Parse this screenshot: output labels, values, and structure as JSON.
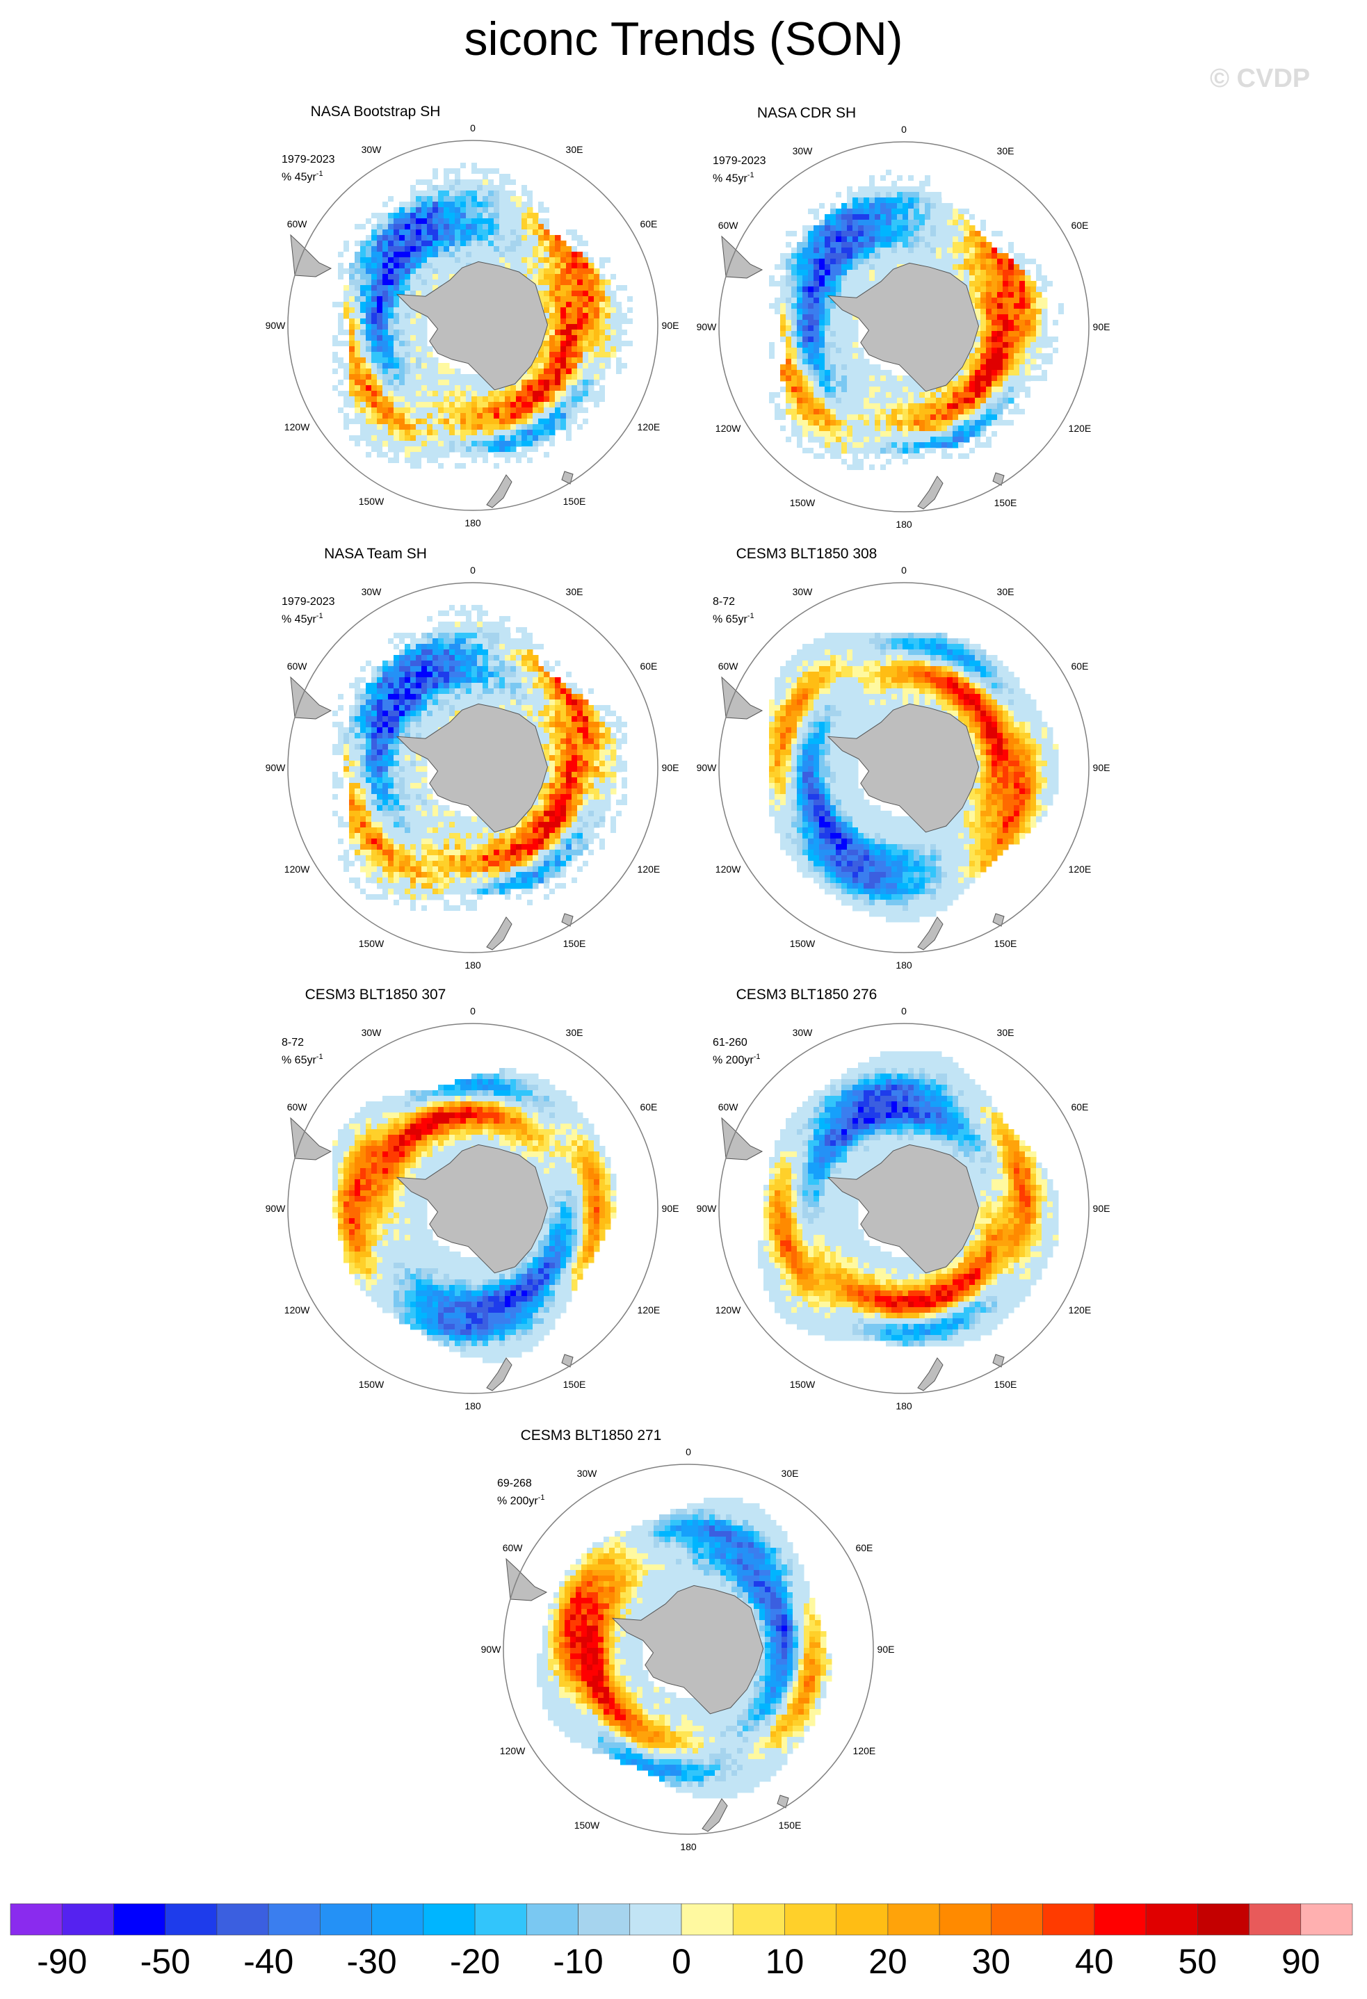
{
  "title": "siconc Trends (SON)",
  "watermark": "© CVDP",
  "lon_labels": [
    "0",
    "30E",
    "60E",
    "90E",
    "120E",
    "150E",
    "180",
    "150W",
    "120W",
    "90W",
    "60W",
    "30W"
  ],
  "panels": [
    {
      "title": "NASA Bootstrap SH",
      "period": "1979-2023",
      "unit_prefix": "% 45yr",
      "unit_sup": "-1",
      "pattern": {
        "a1": 0,
        "a2": 0,
        "ph1": 1.0,
        "ph2": 2.6,
        "edge": 0.74,
        "noise": 0.55
      }
    },
    {
      "title": "NASA CDR SH",
      "period": "1979-2023",
      "unit_prefix": "% 45yr",
      "unit_sup": "-1",
      "pattern": {
        "a1": 0,
        "a2": 0,
        "ph1": 1.1,
        "ph2": 2.5,
        "edge": 0.72,
        "noise": 0.45
      }
    },
    {
      "title": "NASA Team SH",
      "period": "1979-2023",
      "unit_prefix": "% 45yr",
      "unit_sup": "-1",
      "pattern": {
        "a1": 0,
        "a2": 0,
        "ph1": 0.9,
        "ph2": 2.7,
        "edge": 0.74,
        "noise": 0.55
      }
    },
    {
      "title": "CESM3 BLT1850 308",
      "period": "8-72",
      "unit_prefix": "% 65yr",
      "unit_sup": "-1",
      "pattern": {
        "a1": 0,
        "a2": 0,
        "ph1": 2.2,
        "ph2": 0.8,
        "edge": 0.78,
        "noise": 0.3
      }
    },
    {
      "title": "CESM3 BLT1850 307",
      "period": "8-72",
      "unit_prefix": "% 65yr",
      "unit_sup": "-1",
      "pattern": {
        "a1": 0,
        "a2": 0,
        "ph1": 3.6,
        "ph2": 1.5,
        "edge": 0.76,
        "noise": 0.3
      }
    },
    {
      "title": "CESM3 BLT1850 276",
      "period": "61-260",
      "unit_prefix": "% 200yr",
      "unit_sup": "-1",
      "pattern": {
        "a1": 0,
        "a2": 0,
        "ph1": 0.3,
        "ph2": 2.0,
        "edge": 0.8,
        "noise": 0.3
      }
    },
    {
      "title": "CESM3 BLT1850 271",
      "period": "69-268",
      "unit_prefix": "% 200yr",
      "unit_sup": "-1",
      "pattern": {
        "a1": 0,
        "a2": 0,
        "ph1": 5.0,
        "ph2": 1.0,
        "edge": 0.78,
        "noise": 0.3
      }
    }
  ],
  "colorbar": {
    "colors": [
      "#8a2bee",
      "#5522f0",
      "#0000ff",
      "#1e3ceb",
      "#3b5fe0",
      "#3a7eef",
      "#2491f6",
      "#16a0fb",
      "#00b5ff",
      "#32c5fb",
      "#7ac8f2",
      "#a6d4ee",
      "#c2e4f5",
      "#fff9a0",
      "#ffe553",
      "#ffd02a",
      "#ffbd14",
      "#ffa30a",
      "#ff8a00",
      "#ff6a00",
      "#ff3b00",
      "#ff0000",
      "#e00000",
      "#c40000",
      "#e85a5a",
      "#ffb0b0"
    ],
    "labels": [
      "-90",
      "-50",
      "-40",
      "-30",
      "-20",
      "-10",
      "0",
      "10",
      "20",
      "30",
      "40",
      "50",
      "90"
    ]
  },
  "colors": {
    "land": "#bebebe",
    "grid": "#808080",
    "coast": "#555555"
  }
}
